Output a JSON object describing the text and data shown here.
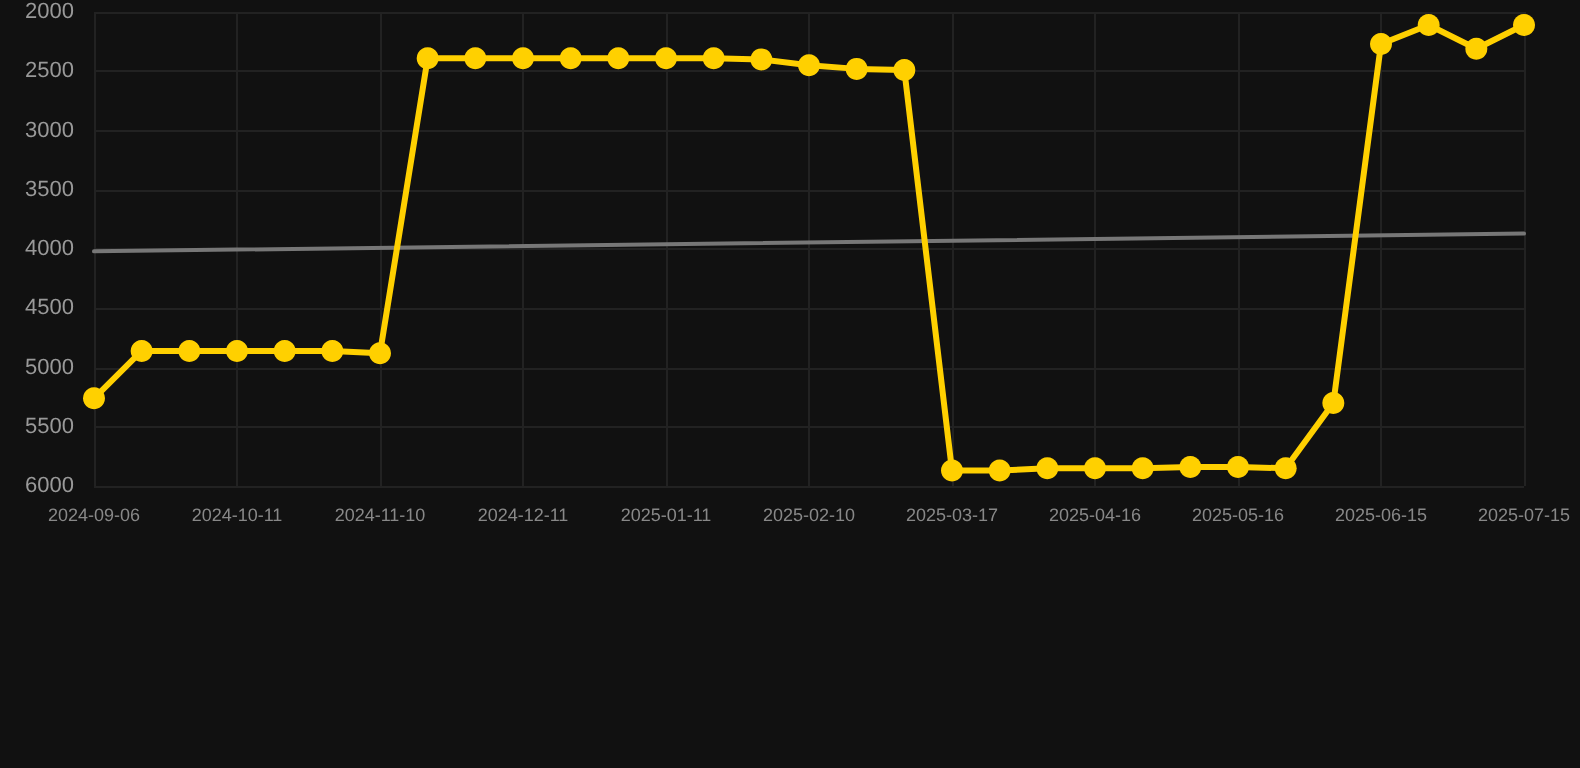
{
  "chart_data": {
    "type": "line",
    "categories": [
      "2024-09-06",
      null,
      null,
      "2024-10-11",
      null,
      null,
      "2024-11-10",
      null,
      null,
      "2024-12-11",
      null,
      null,
      "2025-01-11",
      null,
      null,
      "2025-02-10",
      null,
      null,
      "2025-03-17",
      null,
      null,
      "2025-04-16",
      null,
      null,
      "2025-05-16",
      null,
      null,
      "2025-06-15",
      null,
      null,
      "2025-07-15"
    ],
    "series": [
      {
        "color": "#ffd000",
        "marker": "circle",
        "values": [
          5260,
          4860,
          4860,
          4860,
          4860,
          4860,
          4880,
          2390,
          2390,
          2390,
          2390,
          2390,
          2390,
          2390,
          2400,
          2450,
          2480,
          2490,
          5870,
          5870,
          5850,
          5850,
          5850,
          5840,
          5840,
          5850,
          5300,
          2270,
          2110,
          2310,
          2110
        ]
      },
      {
        "type": "line",
        "color": "#777777",
        "marker": "none",
        "values": [
          4020,
          null,
          null,
          null,
          null,
          null,
          null,
          null,
          null,
          null,
          null,
          null,
          null,
          null,
          null,
          null,
          null,
          null,
          null,
          null,
          null,
          null,
          null,
          null,
          null,
          null,
          null,
          null,
          null,
          null,
          3870
        ]
      }
    ],
    "ylim": [
      6000,
      2000
    ],
    "yticks": [
      2000,
      2500,
      3000,
      3500,
      4000,
      4500,
      5000,
      5500,
      6000
    ],
    "grid": true,
    "line_style": "solid"
  }
}
